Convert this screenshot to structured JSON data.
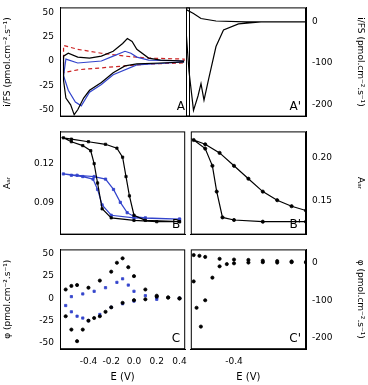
{
  "chart_data": [
    {
      "type": "line",
      "title": "A",
      "y_label": "i/FS (pmol.cm⁻².s⁻¹)",
      "xlim": [
        -0.65,
        0.45
      ],
      "xticks": [
        -0.4,
        -0.2,
        {
          "value": 0,
          "label": "0.0"
        },
        0.2,
        0.4
      ],
      "ylim": [
        -57,
        55
      ],
      "yticks": [
        -50,
        -25,
        0,
        25,
        50
      ],
      "grid": false,
      "tick_labels": "y",
      "series": [
        {
          "color": "#000000",
          "type": "line",
          "line_style": "solid",
          "x": [
            0.4,
            0.2,
            0.0,
            -0.1,
            -0.2,
            -0.3,
            -0.4,
            -0.45,
            -0.5,
            -0.53,
            -0.56,
            -0.6,
            -0.62,
            -0.62,
            -0.58,
            -0.5,
            -0.4,
            -0.3,
            -0.2,
            -0.12,
            -0.08,
            -0.04,
            0.0,
            0.1,
            0.2,
            0.4
          ],
          "values": [
            -1,
            -2,
            -3,
            -5,
            -12,
            -22,
            -30,
            -38,
            -50,
            -55,
            -45,
            -38,
            -20,
            5,
            8,
            4,
            3,
            5,
            10,
            18,
            23,
            20,
            12,
            3,
            1,
            0
          ]
        },
        {
          "color": "#3344cc",
          "type": "line",
          "line_style": "solid",
          "x": [
            0.4,
            0.0,
            -0.2,
            -0.3,
            -0.4,
            -0.47,
            -0.52,
            -0.58,
            -0.62,
            -0.6,
            -0.5,
            -0.3,
            -0.2,
            -0.1,
            -0.05,
            0.0,
            0.1,
            0.4
          ],
          "values": [
            -1,
            -4,
            -14,
            -24,
            -32,
            -46,
            -42,
            -30,
            -15,
            2,
            -2,
            0,
            5,
            10,
            8,
            4,
            1,
            0
          ]
        },
        {
          "color": "#cc2222",
          "type": "line",
          "line_style": "dashed",
          "x": [
            -0.62,
            -0.62,
            -0.5,
            -0.3,
            -0.1,
            0.1,
            0.4,
            0.4,
            0.1,
            -0.1,
            -0.3,
            -0.5,
            -0.62
          ],
          "values": [
            -12,
            16,
            12,
            8,
            5,
            3,
            2,
            -2,
            -3,
            -5,
            -7,
            -9,
            -12
          ]
        }
      ]
    },
    {
      "type": "line",
      "title": "A'",
      "y_label": "i/FS (pmol.cm⁻².s⁻¹)",
      "xlim": [
        -0.7,
        0.1
      ],
      "xticks": [
        -0.4
      ],
      "ylim": [
        -230,
        35
      ],
      "yticks": [
        -200,
        -100,
        0
      ],
      "grid": false,
      "tick_labels": "y",
      "series": [
        {
          "color": "#000000",
          "type": "line",
          "line_style": "solid",
          "x": [
            0.1,
            -0.2,
            -0.35,
            -0.45,
            -0.5,
            -0.55,
            -0.58,
            -0.6,
            -0.62,
            -0.65,
            -0.68,
            -0.7,
            -0.7,
            -0.65,
            -0.6,
            -0.5,
            -0.3,
            0.1
          ],
          "values": [
            0,
            0,
            -5,
            -20,
            -60,
            -140,
            -190,
            -150,
            -180,
            -215,
            -120,
            -20,
            30,
            20,
            8,
            2,
            0,
            0
          ]
        }
      ]
    },
    {
      "type": "line",
      "title": "B",
      "y_label": "Aₐᵣ",
      "xlim": [
        -0.65,
        0.45
      ],
      "xticks": [
        -0.4,
        -0.2,
        {
          "value": 0,
          "label": "0.0"
        },
        0.2,
        0.4
      ],
      "ylim": [
        0.065,
        0.145
      ],
      "yticks": [
        0.09,
        0.12
      ],
      "grid": false,
      "tick_labels": "y",
      "series": [
        {
          "color": "#000000",
          "type": "line",
          "line_style": "solid",
          "marker": "square",
          "x": [
            0.4,
            0.2,
            0.0,
            -0.2,
            -0.28,
            -0.32,
            -0.35,
            -0.38,
            -0.45,
            -0.55,
            -0.62,
            -0.55,
            -0.4,
            -0.25,
            -0.15,
            -0.1,
            -0.07,
            -0.04,
            0.0,
            0.1,
            0.4
          ],
          "values": [
            0.075,
            0.075,
            0.076,
            0.078,
            0.085,
            0.105,
            0.12,
            0.13,
            0.134,
            0.137,
            0.14,
            0.139,
            0.137,
            0.135,
            0.132,
            0.125,
            0.11,
            0.095,
            0.08,
            0.076,
            0.075
          ]
        },
        {
          "color": "#3344cc",
          "type": "line",
          "line_style": "solid",
          "marker": "square",
          "x": [
            0.4,
            0.0,
            -0.2,
            -0.28,
            -0.32,
            -0.36,
            -0.45,
            -0.55,
            -0.62,
            -0.5,
            -0.35,
            -0.25,
            -0.18,
            -0.12,
            -0.06,
            0.0,
            0.1,
            0.4
          ],
          "values": [
            0.077,
            0.078,
            0.08,
            0.088,
            0.1,
            0.108,
            0.11,
            0.111,
            0.112,
            0.111,
            0.11,
            0.108,
            0.1,
            0.09,
            0.082,
            0.079,
            0.078,
            0.077
          ]
        }
      ]
    },
    {
      "type": "line",
      "title": "B'",
      "y_label": "Aₐᵣ",
      "xlim": [
        -0.7,
        0.1
      ],
      "xticks": [
        -0.4
      ],
      "ylim": [
        0.11,
        0.23
      ],
      "yticks": [
        0.15,
        {
          "value": 0.2,
          "label": "0.20"
        }
      ],
      "grid": false,
      "tick_labels": "y",
      "series": [
        {
          "color": "#000000",
          "type": "line",
          "line_style": "solid",
          "marker": "circle",
          "x": [
            0.1,
            -0.2,
            -0.4,
            -0.48,
            -0.52,
            -0.55,
            -0.6,
            -0.68,
            -0.6,
            -0.5,
            -0.4,
            -0.3,
            -0.2,
            -0.1,
            0.0,
            0.1
          ],
          "values": [
            0.125,
            0.125,
            0.127,
            0.13,
            0.16,
            0.19,
            0.21,
            0.22,
            0.215,
            0.205,
            0.19,
            0.175,
            0.16,
            0.15,
            0.143,
            0.138
          ]
        }
      ]
    },
    {
      "type": "scatter",
      "title": "C",
      "x_label": "E (V)",
      "y_label": "φ (pmol.cm⁻².s⁻¹)",
      "xlim": [
        -0.65,
        0.45
      ],
      "xticks": [
        -0.4,
        -0.2,
        {
          "value": 0,
          "label": "0.0"
        },
        0.2,
        0.4
      ],
      "ylim": [
        -57,
        55
      ],
      "yticks": [
        -50,
        -25,
        0,
        25,
        50
      ],
      "grid": false,
      "tick_labels": true,
      "series": [
        {
          "color": "#000000",
          "type": "scatter",
          "marker": "circle",
          "x": [
            0.4,
            0.3,
            0.2,
            0.1,
            0.0,
            -0.1,
            -0.2,
            -0.25,
            -0.3,
            -0.35,
            -0.4,
            -0.45,
            -0.5,
            -0.55,
            -0.6,
            -0.6,
            -0.55,
            -0.5,
            -0.4,
            -0.3,
            -0.2,
            -0.15,
            -0.1,
            -0.05,
            0.0,
            0.1,
            0.2,
            0.3,
            0.4
          ],
          "values": [
            0,
            1,
            2,
            -1,
            -2,
            -5,
            -10,
            -15,
            -20,
            -22,
            -25,
            -35,
            -48,
            -35,
            -20,
            10,
            14,
            15,
            12,
            20,
            30,
            40,
            45,
            35,
            25,
            10,
            3,
            1,
            0
          ]
        },
        {
          "color": "#3344cc",
          "type": "scatter",
          "marker": "square",
          "x": [
            0.4,
            0.2,
            0.0,
            -0.1,
            -0.2,
            -0.3,
            -0.4,
            -0.45,
            -0.5,
            -0.55,
            -0.6,
            -0.55,
            -0.45,
            -0.35,
            -0.25,
            -0.15,
            -0.1,
            -0.05,
            0.0,
            0.1,
            0.2,
            0.4
          ],
          "values": [
            0,
            -1,
            -3,
            -6,
            -10,
            -18,
            -25,
            -22,
            -20,
            -15,
            -8,
            2,
            5,
            8,
            12,
            18,
            22,
            15,
            8,
            3,
            1,
            0
          ]
        }
      ]
    },
    {
      "type": "scatter",
      "title": "C'",
      "x_label": "E (V)",
      "y_label": "φ (pmol.cm⁻².s⁻¹)",
      "xlim": [
        -0.7,
        0.1
      ],
      "xticks": [
        -0.4
      ],
      "ylim": [
        -230,
        35
      ],
      "yticks": [
        -200,
        -100,
        0
      ],
      "grid": false,
      "tick_labels": true,
      "series": [
        {
          "color": "#000000",
          "type": "scatter",
          "marker": "circle",
          "x": [
            0.1,
            0.0,
            -0.1,
            -0.2,
            -0.3,
            -0.4,
            -0.45,
            -0.5,
            -0.55,
            -0.6,
            -0.63,
            -0.66,
            -0.68,
            -0.68,
            -0.64,
            -0.6,
            -0.5,
            -0.4,
            -0.3,
            -0.2,
            -0.1,
            0.0,
            0.1
          ],
          "values": [
            0,
            1,
            0,
            1,
            0,
            -2,
            -4,
            -10,
            -40,
            -100,
            -170,
            -120,
            -50,
            20,
            18,
            15,
            10,
            8,
            7,
            5,
            4,
            3,
            2
          ]
        }
      ]
    }
  ]
}
